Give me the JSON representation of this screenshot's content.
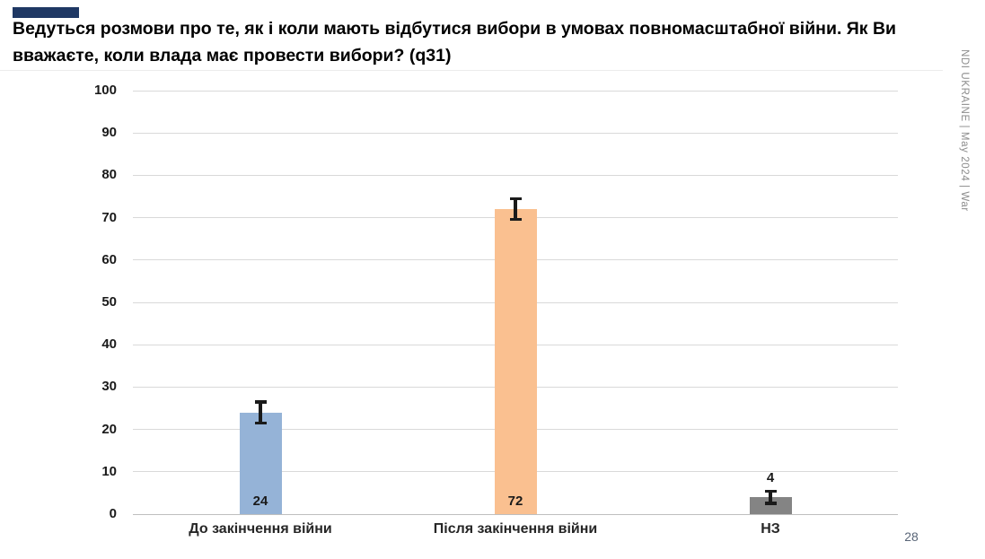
{
  "slide": {
    "accent_color": "#1F3864",
    "title": "Ведуться розмови про те, як і коли мають відбутися вибори в умовах повномасштабної війни. Як Ви вважаєте, коли влада має провести вибори? (q31)",
    "side_text": "NDI UKRAINE | May 2024 | War",
    "page_number": "28"
  },
  "chart_data": {
    "type": "bar",
    "title": "",
    "xlabel": "",
    "ylabel": "",
    "categories": [
      "До закінчення війни",
      "Після закінчення війни",
      "НЗ"
    ],
    "values": [
      24,
      72,
      4
    ],
    "value_labels": [
      "24",
      "72",
      "4"
    ],
    "error_bars": [
      2.5,
      2.5,
      1.5
    ],
    "bar_colors": [
      "#95B3D7",
      "#FAC090",
      "#848484"
    ],
    "ylim": [
      0,
      100
    ],
    "ytick_step": 10,
    "grid": true,
    "legend": "none",
    "grid_color": "#D9D9D9",
    "axis_line_color": "#BFBFBF",
    "error_bar_color": "#1A1A1A"
  }
}
